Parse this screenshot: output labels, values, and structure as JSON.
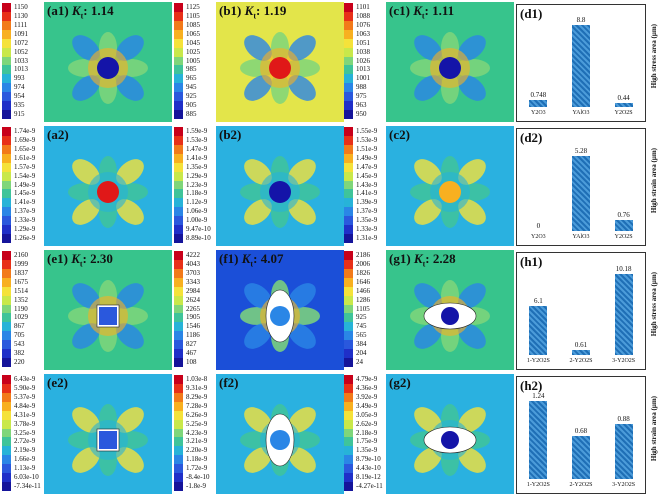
{
  "panels": [
    {
      "id": "a1",
      "label": "(a1)",
      "kt": "1.14",
      "ticks": [
        "1150",
        "1130",
        "1111",
        "1091",
        "1072",
        "1052",
        "1033",
        "1013",
        "993",
        "974",
        "954",
        "935",
        "915"
      ],
      "shape": "circle",
      "bg": "#37c48c"
    },
    {
      "id": "b1",
      "label": "(b1)",
      "kt": "1.19",
      "ticks": [
        "1125",
        "1105",
        "1085",
        "1065",
        "1045",
        "1025",
        "1005",
        "985",
        "965",
        "945",
        "925",
        "905",
        "885"
      ],
      "shape": "circle",
      "bg": "#e3e54a"
    },
    {
      "id": "c1",
      "label": "(c1)",
      "kt": "1.11",
      "ticks": [
        "1101",
        "1088",
        "1076",
        "1063",
        "1051",
        "1038",
        "1026",
        "1013",
        "1001",
        "988",
        "975",
        "963",
        "950"
      ],
      "shape": "circle",
      "bg": "#37c48c"
    },
    {
      "id": "a2",
      "label": "(a2)",
      "kt": "",
      "ticks": [
        "1.74e-9",
        "1.69e-9",
        "1.65e-9",
        "1.61e-9",
        "1.57e-9",
        "1.54e-9",
        "1.49e-9",
        "1.45e-9",
        "1.41e-9",
        "1.37e-9",
        "1.33e-9",
        "1.29e-9",
        "1.26e-9"
      ],
      "shape": "circle",
      "bg": "#2ab1e0"
    },
    {
      "id": "b2",
      "label": "(b2)",
      "kt": "",
      "ticks": [
        "1.59e-9",
        "1.53e-9",
        "1.47e-9",
        "1.41e-9",
        "1.35e-9",
        "1.29e-9",
        "1.23e-9",
        "1.18e-9",
        "1.12e-9",
        "1.06e-9",
        "1.00e-9",
        "9.47e-10",
        "8.89e-10"
      ],
      "shape": "circle",
      "bg": "#2ab1e0"
    },
    {
      "id": "c2",
      "label": "(c2)",
      "kt": "",
      "ticks": [
        "1.55e-9",
        "1.53e-9",
        "1.51e-9",
        "1.49e-9",
        "1.47e-9",
        "1.45e-9",
        "1.43e-9",
        "1.41e-9",
        "1.39e-9",
        "1.37e-9",
        "1.35e-9",
        "1.33e-9",
        "1.31e-9"
      ],
      "shape": "circle",
      "bg": "#2ab1e0"
    },
    {
      "id": "e1",
      "label": "(e1)",
      "kt": "2.30",
      "ticks": [
        "2160",
        "1999",
        "1837",
        "1675",
        "1514",
        "1352",
        "1190",
        "1029",
        "867",
        "705",
        "543",
        "382",
        "220"
      ],
      "shape": "square",
      "bg": "#37c48c"
    },
    {
      "id": "f1",
      "label": "(f1)",
      "kt": "4.07",
      "ticks": [
        "4222",
        "4043",
        "3703",
        "3343",
        "2984",
        "2624",
        "2265",
        "1905",
        "1546",
        "1186",
        "827",
        "467",
        "108"
      ],
      "shape": "ellipse-v",
      "bg": "#1b4fd8"
    },
    {
      "id": "g1",
      "label": "(g1)",
      "kt": "2.28",
      "ticks": [
        "2186",
        "2006",
        "1826",
        "1646",
        "1466",
        "1286",
        "1105",
        "925",
        "745",
        "565",
        "384",
        "204",
        "24"
      ],
      "shape": "ellipse-h",
      "bg": "#37c48c"
    },
    {
      "id": "e2",
      "label": "(e2)",
      "kt": "",
      "ticks": [
        "6.43e-9",
        "5.90e-9",
        "5.37e-9",
        "4.84e-9",
        "4.31e-9",
        "3.78e-9",
        "3.25e-9",
        "2.72e-9",
        "2.19e-9",
        "1.66e-9",
        "1.13e-9",
        "6.03e-10",
        "-7.34e-11"
      ],
      "shape": "square",
      "bg": "#2ab1e0"
    },
    {
      "id": "f2",
      "label": "(f2)",
      "kt": "",
      "ticks": [
        "1.03e-8",
        "9.31e-9",
        "8.29e-9",
        "7.28e-9",
        "6.26e-9",
        "5.25e-9",
        "4.23e-9",
        "3.21e-9",
        "2.20e-9",
        "1.18e-9",
        "1.72e-9",
        "-8.4e-10",
        "-1.8e-9"
      ],
      "shape": "ellipse-v",
      "bg": "#2ab1e0"
    },
    {
      "id": "g2",
      "label": "(g2)",
      "kt": "",
      "ticks": [
        "4.79e-9",
        "4.36e-9",
        "3.92e-9",
        "3.49e-9",
        "3.05e-9",
        "2.62e-9",
        "2.18e-9",
        "1.75e-9",
        "1.35e-9",
        "8.79e-10",
        "4.43e-10",
        "8.19e-12",
        "-4.27e-11"
      ],
      "shape": "ellipse-h",
      "bg": "#2ab1e0"
    }
  ],
  "kt_symbol": "K",
  "kt_sub": "t",
  "charts": [
    {
      "id": "d1",
      "label": "(d1)",
      "ylabel": "High stress area (μm)",
      "categories": [
        "Y2O3",
        "YAlO3",
        "Y2O2S"
      ],
      "values": [
        0.748,
        8.8,
        0.44
      ],
      "value_labels": [
        "0.748",
        "8.8",
        "0.44"
      ],
      "ymax": 9.5
    },
    {
      "id": "d2",
      "label": "(d2)",
      "ylabel": "High strain area (μm)",
      "categories": [
        "Y2O3",
        "YAlO3",
        "Y2O2S"
      ],
      "values": [
        0,
        5.28,
        0.76
      ],
      "value_labels": [
        "0",
        "5.28",
        "0.76"
      ],
      "ymax": 6.2
    },
    {
      "id": "h1",
      "label": "(h1)",
      "ylabel": "High stress area (μm)",
      "categories": [
        "1-Y2O2S",
        "2-Y2O2S",
        "3-Y2O2S"
      ],
      "values": [
        6.1,
        0.61,
        10.18
      ],
      "value_labels": [
        "6.1",
        "0.61",
        "10.18"
      ],
      "ymax": 11
    },
    {
      "id": "h2",
      "label": "(h2)",
      "ylabel": "High strain area (μm)",
      "categories": [
        "1-Y2O2S",
        "2-Y2O2S",
        "3-Y2O2S"
      ],
      "values": [
        1.24,
        0.68,
        0.88
      ],
      "value_labels": [
        "1.24",
        "0.68",
        "0.88"
      ],
      "ymax": 1.4
    }
  ],
  "colors": {
    "inclusion": "#1414a8",
    "hot": "#e01818",
    "white": "#ffffff"
  }
}
